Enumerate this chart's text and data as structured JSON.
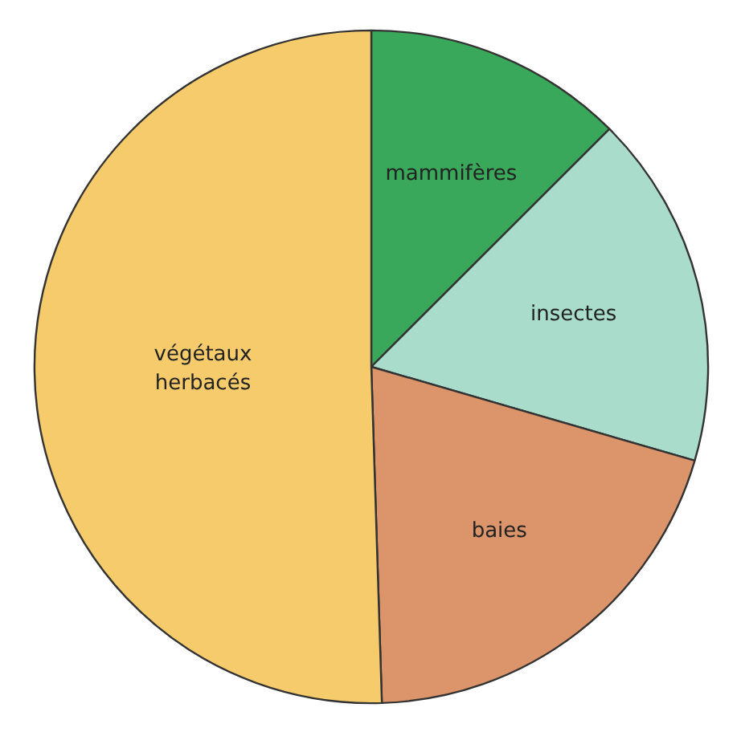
{
  "chart_data": {
    "type": "pie",
    "categories": [
      "mammifères",
      "insectes",
      "baies",
      "végétaux herbacés"
    ],
    "values": [
      12.5,
      17,
      20,
      50.5
    ],
    "colors": [
      "#3aa85a",
      "#a9dccb",
      "#dc946a",
      "#f6cb6c"
    ]
  }
}
